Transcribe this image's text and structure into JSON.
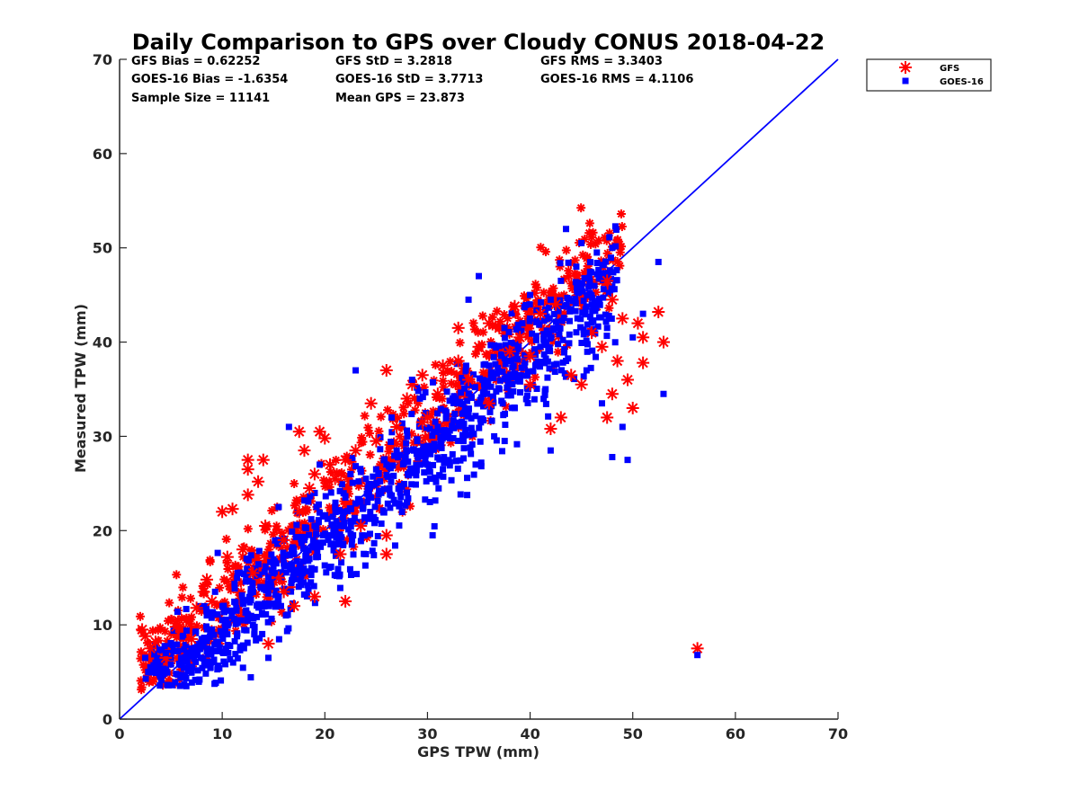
{
  "chart_data": {
    "type": "scatter",
    "title": "Daily Comparison to GPS over Cloudy CONUS 2018-04-22",
    "xlabel": "GPS TPW (mm)",
    "ylabel": "Measured TPW (mm)",
    "xlim": [
      0,
      70
    ],
    "ylim": [
      0,
      70
    ],
    "xticks": [
      "0",
      "10",
      "20",
      "30",
      "40",
      "50",
      "60",
      "70"
    ],
    "yticks": [
      "0",
      "10",
      "20",
      "30",
      "40",
      "50",
      "60",
      "70"
    ],
    "grid": false,
    "legend_position": "outside-top-right",
    "reference_line": {
      "name": "1:1 line",
      "x": [
        0,
        70
      ],
      "y": [
        0,
        70
      ],
      "color": "#0000ff"
    },
    "stats": [
      {
        "label": "GFS Bias = 0.62252"
      },
      {
        "label": "GFS StD = 3.2818"
      },
      {
        "label": "GFS RMS = 3.3403"
      },
      {
        "label": "GOES-16 Bias = -1.6354"
      },
      {
        "label": "GOES-16 StD = 3.7713"
      },
      {
        "label": "GOES-16 RMS = 4.1106"
      },
      {
        "label": "Sample Size = 11141"
      },
      {
        "label": "Mean GPS = 23.873"
      }
    ],
    "series": [
      {
        "name": "GFS",
        "marker": "asterisk",
        "color": "#ff0000",
        "points": [
          [
            2.2,
            9.5
          ],
          [
            2.5,
            8.8
          ],
          [
            3.0,
            7.5
          ],
          [
            3.5,
            8.2
          ],
          [
            4.5,
            6.5
          ],
          [
            5.5,
            9.8
          ],
          [
            6.5,
            10.5
          ],
          [
            7.5,
            11.8
          ],
          [
            8.2,
            13.5
          ],
          [
            8.5,
            14.8
          ],
          [
            9.0,
            12.5
          ],
          [
            10.0,
            22.0
          ],
          [
            11.0,
            22.3
          ],
          [
            10.5,
            17.2
          ],
          [
            12.0,
            18.0
          ],
          [
            12.5,
            23.8
          ],
          [
            12.5,
            26.5
          ],
          [
            12.5,
            27.5
          ],
          [
            13.5,
            25.2
          ],
          [
            14.0,
            27.5
          ],
          [
            14.5,
            8.0
          ],
          [
            14.2,
            20.5
          ],
          [
            15.5,
            15.0
          ],
          [
            16.0,
            19.0
          ],
          [
            16.0,
            13.5
          ],
          [
            17.0,
            12.0
          ],
          [
            17.5,
            22.0
          ],
          [
            17.5,
            30.5
          ],
          [
            18.0,
            28.5
          ],
          [
            18.5,
            24.5
          ],
          [
            19.0,
            26.0
          ],
          [
            19.5,
            30.5
          ],
          [
            20.0,
            29.8
          ],
          [
            20.5,
            27.0
          ],
          [
            21.0,
            25.5
          ],
          [
            22.0,
            27.5
          ],
          [
            23.0,
            28.5
          ],
          [
            24.5,
            33.5
          ],
          [
            25.0,
            29.5
          ],
          [
            26.0,
            37.0
          ],
          [
            26.0,
            17.5
          ],
          [
            26.0,
            19.5
          ],
          [
            27.0,
            31.0
          ],
          [
            28.0,
            34.0
          ],
          [
            28.5,
            35.5
          ],
          [
            29.5,
            36.5
          ],
          [
            30.0,
            32.0
          ],
          [
            31.0,
            34.5
          ],
          [
            31.5,
            37.5
          ],
          [
            33.0,
            38.0
          ],
          [
            34.0,
            36.0
          ],
          [
            35.0,
            39.5
          ],
          [
            36.0,
            42.0
          ],
          [
            37.0,
            41.5
          ],
          [
            38.0,
            39.0
          ],
          [
            39.0,
            40.5
          ],
          [
            40.0,
            38.5
          ],
          [
            41.0,
            43.0
          ],
          [
            42.0,
            30.8
          ],
          [
            43.0,
            32.0
          ],
          [
            44.0,
            36.5
          ],
          [
            45.0,
            35.5
          ],
          [
            46.0,
            41.0
          ],
          [
            47.0,
            39.5
          ],
          [
            47.5,
            46.5
          ],
          [
            48.0,
            44.5
          ],
          [
            48.5,
            38.0
          ],
          [
            49.0,
            42.5
          ],
          [
            49.5,
            36.0
          ],
          [
            50.0,
            33.0
          ],
          [
            50.5,
            42.0
          ],
          [
            51.0,
            40.5
          ],
          [
            51.0,
            37.8
          ],
          [
            52.5,
            43.2
          ],
          [
            53.0,
            40.0
          ],
          [
            47.5,
            32.0
          ],
          [
            48.0,
            34.5
          ],
          [
            56.3,
            7.5
          ],
          [
            22.0,
            12.5
          ],
          [
            23.5,
            20.5
          ],
          [
            19.0,
            13.0
          ],
          [
            33.0,
            41.5
          ],
          [
            38.5,
            43.8
          ],
          [
            36.0,
            33.5
          ],
          [
            42.5,
            44.0
          ],
          [
            40.0,
            35.5
          ],
          [
            13.0,
            15.5
          ],
          [
            21.5,
            17.5
          ],
          [
            7.0,
            8.5
          ],
          [
            29.5,
            31.5
          ]
        ]
      },
      {
        "name": "GOES-16",
        "marker": "square",
        "color": "#0000ff",
        "points": [
          [
            2.5,
            6.5
          ],
          [
            3.0,
            5.5
          ],
          [
            3.5,
            6.0
          ],
          [
            4.0,
            4.5
          ],
          [
            4.5,
            7.0
          ],
          [
            5.0,
            5.8
          ],
          [
            5.5,
            4.8
          ],
          [
            6.0,
            6.5
          ],
          [
            6.5,
            3.5
          ],
          [
            7.0,
            7.5
          ],
          [
            7.5,
            6.8
          ],
          [
            8.0,
            8.5
          ],
          [
            8.5,
            7.2
          ],
          [
            9.0,
            9.5
          ],
          [
            9.5,
            8.0
          ],
          [
            10.0,
            10.5
          ],
          [
            10.5,
            9.0
          ],
          [
            11.0,
            11.5
          ],
          [
            11.5,
            10.2
          ],
          [
            12.0,
            12.5
          ],
          [
            12.5,
            11.0
          ],
          [
            13.0,
            13.5
          ],
          [
            13.5,
            12.2
          ],
          [
            14.0,
            14.0
          ],
          [
            14.5,
            6.5
          ],
          [
            15.0,
            15.5
          ],
          [
            15.5,
            13.0
          ],
          [
            16.0,
            16.5
          ],
          [
            16.5,
            31.0
          ],
          [
            17.0,
            17.5
          ],
          [
            17.5,
            15.5
          ],
          [
            18.0,
            19.0
          ],
          [
            18.5,
            17.0
          ],
          [
            19.0,
            20.5
          ],
          [
            19.5,
            18.5
          ],
          [
            20.0,
            21.5
          ],
          [
            20.5,
            19.5
          ],
          [
            21.0,
            22.5
          ],
          [
            21.5,
            20.5
          ],
          [
            22.0,
            23.5
          ],
          [
            22.5,
            21.0
          ],
          [
            23.0,
            37.0
          ],
          [
            23.5,
            23.0
          ],
          [
            24.0,
            25.5
          ],
          [
            24.5,
            23.5
          ],
          [
            25.0,
            26.5
          ],
          [
            25.5,
            24.0
          ],
          [
            26.0,
            27.0
          ],
          [
            27.0,
            28.5
          ],
          [
            28.0,
            23.0
          ],
          [
            29.0,
            29.5
          ],
          [
            30.0,
            27.0
          ],
          [
            30.5,
            19.5
          ],
          [
            31.0,
            31.0
          ],
          [
            32.0,
            30.0
          ],
          [
            33.0,
            33.5
          ],
          [
            34.0,
            32.5
          ],
          [
            35.0,
            47.0
          ],
          [
            35.5,
            34.5
          ],
          [
            36.0,
            37.5
          ],
          [
            37.0,
            35.0
          ],
          [
            38.0,
            38.0
          ],
          [
            39.0,
            36.5
          ],
          [
            40.0,
            42.5
          ],
          [
            41.0,
            39.5
          ],
          [
            42.0,
            44.5
          ],
          [
            43.0,
            46.5
          ],
          [
            43.5,
            52.0
          ],
          [
            44.0,
            43.5
          ],
          [
            45.0,
            50.5
          ],
          [
            45.5,
            41.0
          ],
          [
            46.0,
            44.0
          ],
          [
            47.0,
            33.5
          ],
          [
            48.0,
            50.0
          ],
          [
            49.0,
            31.0
          ],
          [
            49.5,
            27.5
          ],
          [
            50.0,
            40.5
          ],
          [
            51.0,
            43.0
          ],
          [
            52.5,
            48.5
          ],
          [
            53.0,
            34.5
          ],
          [
            48.0,
            27.8
          ],
          [
            42.0,
            28.5
          ],
          [
            56.3,
            6.8
          ],
          [
            34.0,
            44.5
          ],
          [
            37.5,
            41.5
          ],
          [
            40.0,
            45.0
          ],
          [
            44.5,
            48.0
          ],
          [
            46.5,
            49.5
          ],
          [
            26.5,
            32.0
          ],
          [
            28.5,
            36.0
          ],
          [
            31.5,
            26.5
          ],
          [
            33.5,
            29.5
          ],
          [
            22.5,
            26.0
          ],
          [
            24.0,
            17.5
          ],
          [
            19.5,
            27.0
          ],
          [
            15.5,
            22.5
          ],
          [
            11.5,
            15.5
          ],
          [
            8.5,
            11.0
          ],
          [
            6.5,
            6.5
          ],
          [
            5.0,
            8.0
          ],
          [
            41.5,
            35.0
          ],
          [
            38.5,
            33.0
          ],
          [
            36.5,
            30.0
          ],
          [
            43.5,
            38.0
          ],
          [
            45.5,
            37.0
          ],
          [
            47.5,
            41.5
          ]
        ]
      }
    ]
  }
}
